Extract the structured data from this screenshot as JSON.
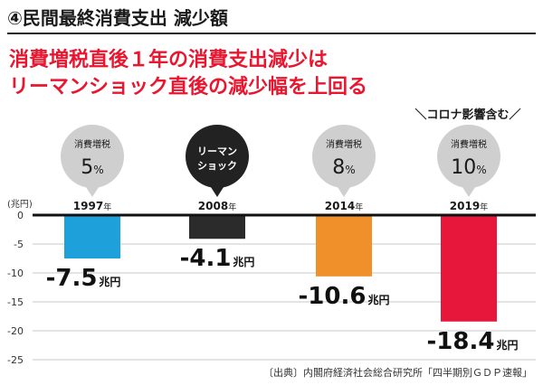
{
  "chart_data": {
    "type": "bar",
    "title": "④民間最終消費支出 減少額",
    "subtitle_lines": [
      "消費増税直後１年の消費支出減少は",
      "リーマンショック直後の減少幅を上回る"
    ],
    "annotation": "＼コロナ影響含む／",
    "ylabel": "(兆円)",
    "ylim": [
      -25,
      0
    ],
    "yticks": [
      "0",
      "-5",
      "-10",
      "-15",
      "-20",
      "-25"
    ],
    "yticks_values": [
      0,
      -5,
      -10,
      -15,
      -20,
      -25
    ],
    "grid": true,
    "value_unit": "兆円",
    "categories": [
      "1997年",
      "2008年",
      "2014年",
      "2019年"
    ],
    "values": [
      -7.5,
      -4.1,
      -10.6,
      -18.4
    ],
    "value_labels": [
      "-7.5",
      "-4.1",
      "-10.6",
      "-18.4"
    ],
    "bubbles": [
      {
        "line1": "消費増税",
        "line2": "5",
        "unit": "%",
        "style": "light"
      },
      {
        "line1": "リーマン",
        "line2": "ショック",
        "unit": "",
        "style": "dark"
      },
      {
        "line1": "消費増税",
        "line2": "8",
        "unit": "%",
        "style": "light"
      },
      {
        "line1": "消費増税",
        "line2": "10",
        "unit": "%",
        "style": "light"
      }
    ],
    "colors": [
      "#1ea0db",
      "#2b2b2b",
      "#f0902a",
      "#e6173a"
    ],
    "source": "〔出典〕内閣府経済社会総合研究所「四半期別ＧＤＰ速報」"
  }
}
